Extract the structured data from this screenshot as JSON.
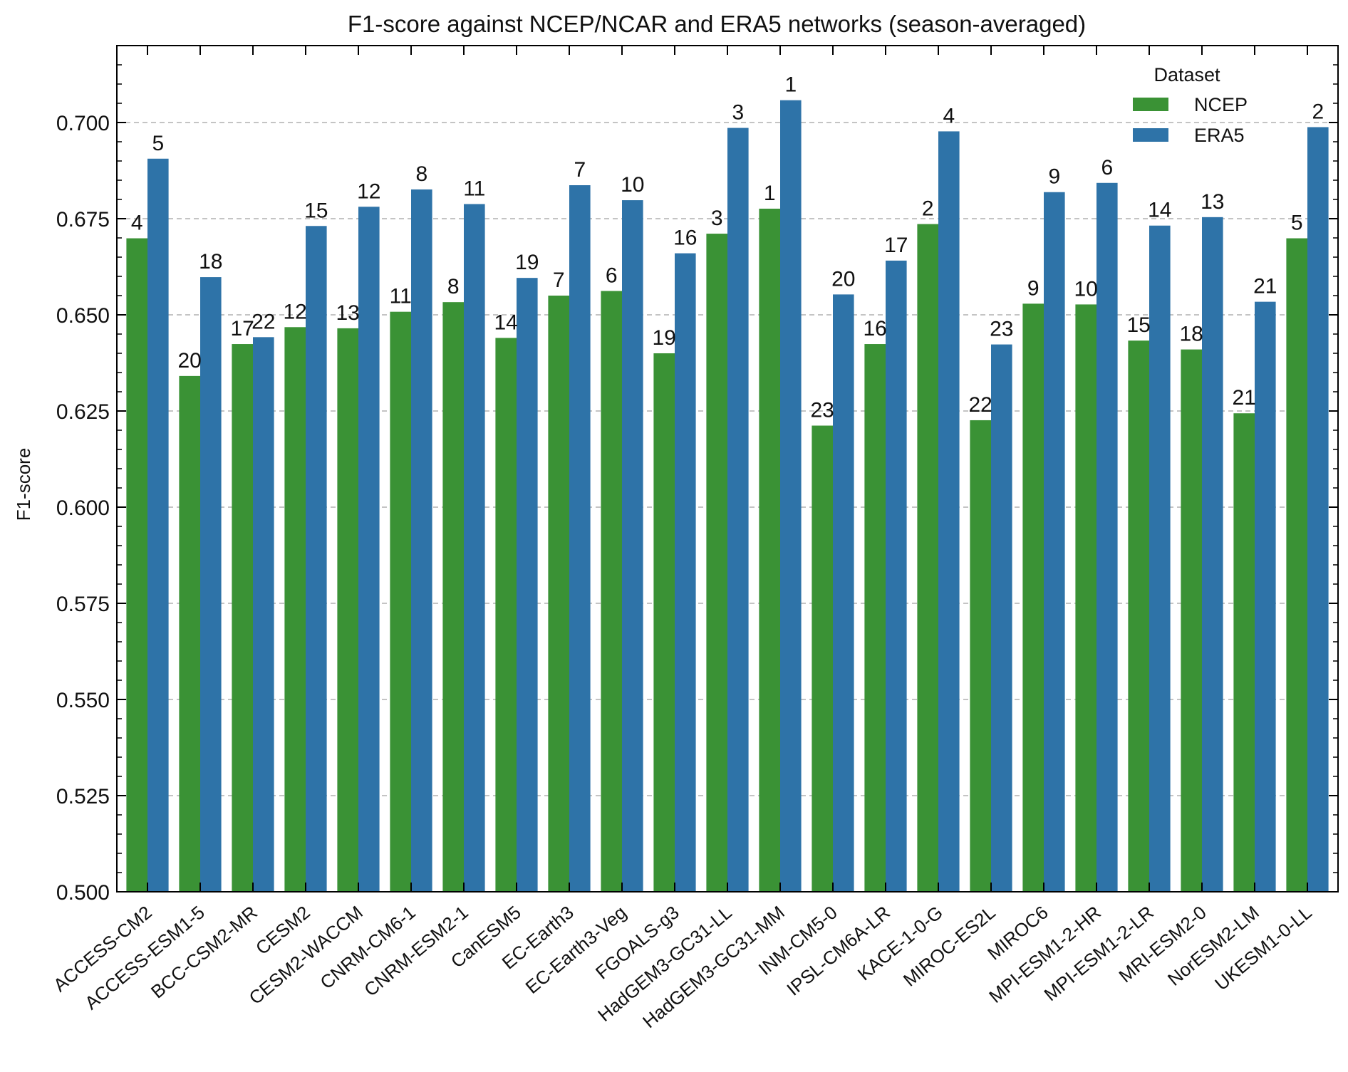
{
  "chart_data": {
    "type": "bar",
    "title": "F1-score against NCEP/NCAR and ERA5 networks (season-averaged)",
    "xlabel": "",
    "ylabel": "F1-score",
    "ylim": [
      0.5,
      0.72
    ],
    "yticks": [
      "0.500",
      "0.525",
      "0.550",
      "0.575",
      "0.600",
      "0.625",
      "0.650",
      "0.675",
      "0.700"
    ],
    "grid": "horizontal dashed",
    "legend": {
      "title": "Dataset",
      "placement": "top-right"
    },
    "categories": [
      "ACCESS-CM2",
      "ACCESS-ESM1-5",
      "BCC-CSM2-MR",
      "CESM2",
      "CESM2-WACCM",
      "CNRM-CM6-1",
      "CNRM-ESM2-1",
      "CanESM5",
      "EC-Earth3",
      "EC-Earth3-Veg",
      "FGOALS-g3",
      "HadGEM3-GC31-LL",
      "HadGEM3-GC31-MM",
      "INM-CM5-0",
      "IPSL-CM6A-LR",
      "KACE-1-0-G",
      "MIROC-ES2L",
      "MIROC6",
      "MPI-ESM1-2-HR",
      "MPI-ESM1-2-LR",
      "MRI-ESM2-0",
      "NorESM2-LM",
      "UKESM1-0-LL"
    ],
    "series": [
      {
        "name": "NCEP",
        "color": "#3a9235",
        "values": [
          0.6699,
          0.6341,
          0.6424,
          0.6468,
          0.6465,
          0.6508,
          0.6533,
          0.644,
          0.655,
          0.6562,
          0.64,
          0.6711,
          0.6776,
          0.6212,
          0.6424,
          0.6736,
          0.6226,
          0.6529,
          0.6527,
          0.6433,
          0.641,
          0.6244,
          0.6699
        ],
        "rank_labels": [
          "4",
          "20",
          "17",
          "12",
          "13",
          "11",
          "8",
          "14",
          "7",
          "6",
          "19",
          "3",
          "1",
          "23",
          "16",
          "2",
          "22",
          "9",
          "10",
          "15",
          "18",
          "21",
          "5"
        ]
      },
      {
        "name": "ERA5",
        "color": "#2e73a8",
        "values": [
          0.6906,
          0.6598,
          0.6442,
          0.6731,
          0.6781,
          0.6826,
          0.6788,
          0.6596,
          0.6837,
          0.6798,
          0.666,
          0.6986,
          0.7058,
          0.6553,
          0.6641,
          0.6977,
          0.6423,
          0.6819,
          0.6843,
          0.6732,
          0.6754,
          0.6534,
          0.6988
        ],
        "rank_labels": [
          "5",
          "18",
          "22",
          "15",
          "12",
          "8",
          "11",
          "19",
          "7",
          "10",
          "16",
          "3",
          "1",
          "20",
          "17",
          "4",
          "23",
          "9",
          "6",
          "14",
          "13",
          "21",
          "2"
        ]
      }
    ]
  }
}
